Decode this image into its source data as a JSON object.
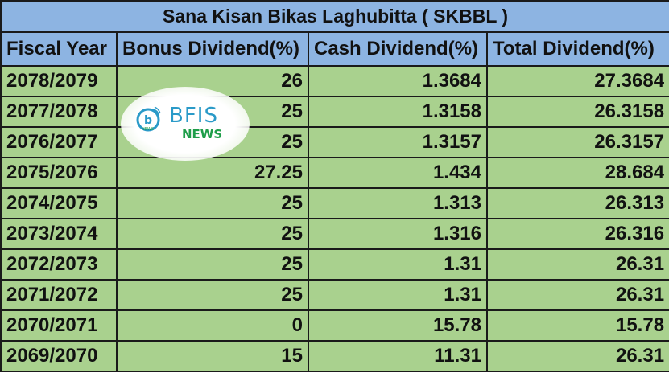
{
  "title": "Sana Kisan Bikas Laghubitta ( SKBBL )",
  "columns": [
    "Fiscal Year",
    "Bonus Dividend(%)",
    "Cash Dividend(%)",
    "Total Dividend(%)"
  ],
  "rows": [
    {
      "fiscal_year": "2078/2079",
      "bonus": "26",
      "cash": "1.3684",
      "total": "27.3684"
    },
    {
      "fiscal_year": "2077/2078",
      "bonus": "25",
      "cash": "1.3158",
      "total": "26.3158"
    },
    {
      "fiscal_year": "2076/2077",
      "bonus": "25",
      "cash": "1.3157",
      "total": "26.3157"
    },
    {
      "fiscal_year": "2075/2076",
      "bonus": "27.25",
      "cash": "1.434",
      "total": "28.684"
    },
    {
      "fiscal_year": "2074/2075",
      "bonus": "25",
      "cash": "1.313",
      "total": "26.313"
    },
    {
      "fiscal_year": "2073/2074",
      "bonus": "25",
      "cash": "1.316",
      "total": "26.316"
    },
    {
      "fiscal_year": "2072/2073",
      "bonus": "25",
      "cash": "1.31",
      "total": "26.31"
    },
    {
      "fiscal_year": "2071/2072",
      "bonus": "25",
      "cash": "1.31",
      "total": "26.31"
    },
    {
      "fiscal_year": "2070/2071",
      "bonus": "0",
      "cash": "15.78",
      "total": "15.78"
    },
    {
      "fiscal_year": "2069/2070",
      "bonus": "15",
      "cash": "11.31",
      "total": "26.31"
    }
  ],
  "watermark": {
    "brand": "BFIS",
    "sub": "NEWS",
    "icon_letter": "b",
    "icon_caption": "NEWS",
    "icon": "bfis-news-logo-icon"
  },
  "colors": {
    "header_bg": "#8db4e2",
    "row_bg": "#a9d18e",
    "border": "#1a1a1a"
  }
}
